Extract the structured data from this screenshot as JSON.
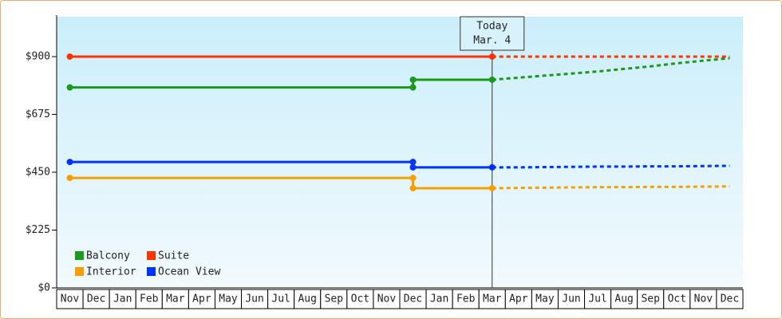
{
  "chart_data": {
    "type": "line",
    "categories": [
      "Nov",
      "Dec",
      "Jan",
      "Feb",
      "Mar",
      "Apr",
      "May",
      "Jun",
      "Jul",
      "Aug",
      "Sep",
      "Oct",
      "Nov",
      "Dec",
      "Jan",
      "Feb",
      "Mar",
      "Apr",
      "May",
      "Jun",
      "Jul",
      "Aug",
      "Sep",
      "Oct",
      "Nov",
      "Dec"
    ],
    "step": "pre",
    "ylim": [
      0,
      1055
    ],
    "yticks": [
      {
        "value": 0,
        "label": "$0"
      },
      {
        "value": 225,
        "label": "$225"
      },
      {
        "value": 450,
        "label": "$450"
      },
      {
        "value": 675,
        "label": "$675"
      },
      {
        "value": 900,
        "label": "$900"
      }
    ],
    "annotation": {
      "label": "Today",
      "date": "Mar. 4"
    },
    "legend": "bottom-left",
    "series": [
      {
        "name": "Balcony",
        "color": "#1a9a1a",
        "values": [
          780,
          780,
          780,
          780,
          780,
          780,
          780,
          780,
          780,
          780,
          780,
          780,
          780,
          780,
          810,
          810,
          810,
          null,
          null,
          null,
          null,
          null,
          null,
          null,
          null,
          null
        ],
        "forecast": [
          null,
          null,
          null,
          null,
          null,
          null,
          null,
          null,
          null,
          null,
          null,
          null,
          null,
          null,
          null,
          null,
          810,
          818,
          826,
          834,
          842,
          852,
          862,
          874,
          884,
          894
        ]
      },
      {
        "name": "Suite",
        "color": "#ff3300",
        "values": [
          900,
          900,
          900,
          900,
          900,
          900,
          900,
          900,
          900,
          900,
          900,
          900,
          900,
          900,
          900,
          900,
          900,
          null,
          null,
          null,
          null,
          null,
          null,
          null,
          null,
          null
        ],
        "forecast": [
          null,
          null,
          null,
          null,
          null,
          null,
          null,
          null,
          null,
          null,
          null,
          null,
          null,
          null,
          null,
          null,
          900,
          900,
          900,
          900,
          900,
          900,
          900,
          900,
          900,
          900
        ]
      },
      {
        "name": "Interior",
        "color": "#f5a000",
        "values": [
          428,
          428,
          428,
          428,
          428,
          428,
          428,
          428,
          428,
          428,
          428,
          428,
          428,
          428,
          388,
          388,
          388,
          null,
          null,
          null,
          null,
          null,
          null,
          null,
          null,
          null
        ],
        "forecast": [
          null,
          null,
          null,
          null,
          null,
          null,
          null,
          null,
          null,
          null,
          null,
          null,
          null,
          null,
          null,
          null,
          388,
          389,
          390,
          391,
          392,
          392,
          393,
          393,
          394,
          395
        ]
      },
      {
        "name": "Ocean View",
        "color": "#0033ff",
        "values": [
          490,
          490,
          490,
          490,
          490,
          490,
          490,
          490,
          490,
          490,
          490,
          490,
          490,
          490,
          469,
          469,
          469,
          null,
          null,
          null,
          null,
          null,
          null,
          null,
          null,
          null
        ],
        "forecast": [
          null,
          null,
          null,
          null,
          null,
          null,
          null,
          null,
          null,
          null,
          null,
          null,
          null,
          null,
          null,
          null,
          469,
          469,
          470,
          471,
          472,
          472,
          473,
          473,
          474,
          475
        ]
      }
    ]
  }
}
